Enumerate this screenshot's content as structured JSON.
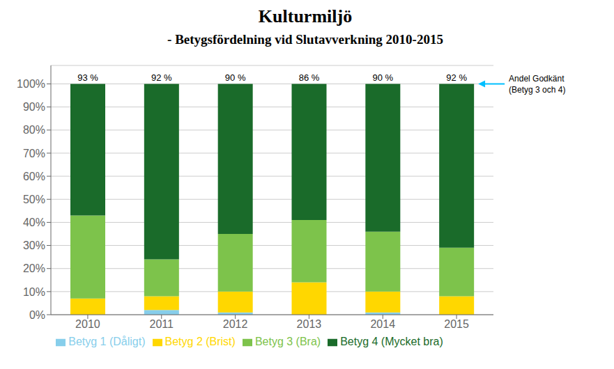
{
  "chart_data": {
    "type": "bar",
    "stacked": true,
    "title": "Kulturmiljö",
    "subtitle": "- Betygsfördelning vid Slutavverkning 2010-2015",
    "categories": [
      "2010",
      "2011",
      "2012",
      "2013",
      "2014",
      "2015"
    ],
    "series": [
      {
        "name": "Betyg 1 (Dåligt)",
        "color": "#87CEEB",
        "values": [
          0,
          2,
          1,
          0,
          1,
          0
        ]
      },
      {
        "name": "Betyg 2 (Brist)",
        "color": "#FFD700",
        "values": [
          7,
          6,
          9,
          14,
          9,
          8
        ]
      },
      {
        "name": "Betyg 3 (Bra)",
        "color": "#7DC34B",
        "values": [
          36,
          16,
          25,
          27,
          26,
          21
        ]
      },
      {
        "name": "Betyg 4 (Mycket bra)",
        "color": "#1A6B2A",
        "values": [
          57,
          76,
          65,
          59,
          64,
          71
        ]
      }
    ],
    "ylim": [
      0,
      108
    ],
    "yticks": [
      {
        "value": 0,
        "label": "0%"
      },
      {
        "value": 10,
        "label": "10%"
      },
      {
        "value": 20,
        "label": "20%"
      },
      {
        "value": 30,
        "label": "30%"
      },
      {
        "value": 40,
        "label": "40%"
      },
      {
        "value": 50,
        "label": "50%"
      },
      {
        "value": 60,
        "label": "60%"
      },
      {
        "value": 70,
        "label": "70%"
      },
      {
        "value": 80,
        "label": "80%"
      },
      {
        "value": 90,
        "label": "90%"
      },
      {
        "value": 100,
        "label": "100%"
      }
    ],
    "grid": true,
    "legend": "bottom",
    "annotations": [
      {
        "x": "2010",
        "text": "93 %"
      },
      {
        "x": "2011",
        "text": "92 %"
      },
      {
        "x": "2012",
        "text": "90 %"
      },
      {
        "x": "2013",
        "text": "86 %"
      },
      {
        "x": "2014",
        "text": "90 %"
      },
      {
        "x": "2015",
        "text": "92 %"
      },
      {
        "x": "2015",
        "y": 100,
        "color": "#00BFFF",
        "text": [
          "Andel Godkänt",
          "(Betyg 3 och 4)"
        ]
      }
    ]
  }
}
